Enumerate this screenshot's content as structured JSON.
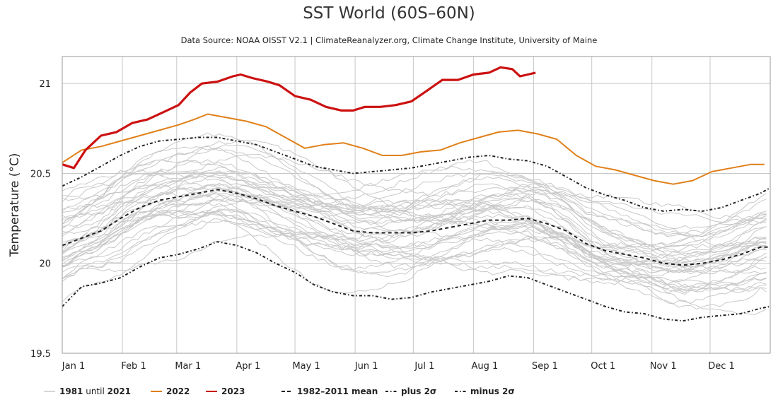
{
  "chart_data": {
    "type": "line",
    "title": "SST World (60S–60N)",
    "subtitle": "Data Source: NOAA OISST V2.1 | ClimateReanalyzer.org, Climate Change Institute, University of Maine",
    "ylabel": "Temperature (°C)",
    "xlabel": "",
    "ylim": [
      19.5,
      21.15
    ],
    "xlim": [
      0,
      365
    ],
    "y_ticks": [
      19.5,
      20,
      20.5,
      21
    ],
    "x_ticks": [
      {
        "label": "Jan 1",
        "day": 0
      },
      {
        "label": "Feb 1",
        "day": 31
      },
      {
        "label": "Mar 1",
        "day": 59
      },
      {
        "label": "Apr 1",
        "day": 90
      },
      {
        "label": "May 1",
        "day": 120
      },
      {
        "label": "Jun 1",
        "day": 151
      },
      {
        "label": "Jul 1",
        "day": 181
      },
      {
        "label": "Aug 1",
        "day": 212
      },
      {
        "label": "Sep 1",
        "day": 243
      },
      {
        "label": "Oct 1",
        "day": 273
      },
      {
        "label": "Nov 1",
        "day": 304
      },
      {
        "label": "Dec 1",
        "day": 334
      }
    ],
    "grid": true,
    "legend_position": "bottom",
    "legend": [
      {
        "label_main": "1981",
        "label_mid": " until ",
        "label_end": "2021",
        "series": "history"
      },
      {
        "label_main": "2022",
        "series": "2022"
      },
      {
        "label_main": "2023",
        "series": "2023"
      },
      {
        "label_main": "1982–2011 mean",
        "series": "mean"
      },
      {
        "label_main": "plus 2σ",
        "series": "plus"
      },
      {
        "label_main": "minus 2σ",
        "series": "minus"
      }
    ],
    "series": [
      {
        "name": "2023",
        "color": "#cc1111",
        "style": "solid",
        "x": [
          0,
          6,
          12,
          20,
          28,
          36,
          44,
          52,
          60,
          66,
          72,
          80,
          88,
          92,
          98,
          106,
          112,
          120,
          128,
          136,
          144,
          150,
          156,
          164,
          172,
          180,
          188,
          196,
          204,
          212,
          220,
          226,
          232,
          236,
          240,
          244
        ],
        "y": [
          20.55,
          20.53,
          20.63,
          20.71,
          20.73,
          20.78,
          20.8,
          20.84,
          20.88,
          20.95,
          21.0,
          21.01,
          21.04,
          21.05,
          21.03,
          21.01,
          20.99,
          20.93,
          20.91,
          20.87,
          20.85,
          20.85,
          20.87,
          20.87,
          20.88,
          20.9,
          20.96,
          21.02,
          21.02,
          21.05,
          21.06,
          21.09,
          21.08,
          21.04,
          21.05,
          21.06
        ]
      },
      {
        "name": "2022",
        "color": "#e0801a",
        "style": "solid",
        "x": [
          0,
          10,
          20,
          30,
          40,
          50,
          60,
          68,
          75,
          85,
          95,
          105,
          115,
          125,
          135,
          145,
          155,
          165,
          175,
          185,
          195,
          205,
          215,
          225,
          235,
          245,
          255,
          265,
          275,
          285,
          295,
          305,
          315,
          325,
          335,
          345,
          355,
          362
        ],
        "y": [
          20.56,
          20.63,
          20.65,
          20.68,
          20.71,
          20.74,
          20.77,
          20.8,
          20.83,
          20.81,
          20.79,
          20.76,
          20.7,
          20.64,
          20.66,
          20.67,
          20.64,
          20.6,
          20.6,
          20.62,
          20.63,
          20.67,
          20.7,
          20.73,
          20.74,
          20.72,
          20.69,
          20.6,
          20.54,
          20.52,
          20.49,
          20.46,
          20.44,
          20.46,
          20.51,
          20.53,
          20.55,
          20.55
        ]
      },
      {
        "name": "1982–2011 mean",
        "color": "#222222",
        "style": "dashed",
        "x": [
          0,
          10,
          20,
          30,
          40,
          50,
          60,
          70,
          80,
          90,
          100,
          110,
          120,
          130,
          140,
          150,
          160,
          170,
          180,
          190,
          200,
          210,
          220,
          230,
          240,
          250,
          260,
          270,
          280,
          290,
          300,
          310,
          320,
          330,
          340,
          350,
          360,
          365
        ],
        "y": [
          20.1,
          20.14,
          20.18,
          20.25,
          20.31,
          20.35,
          20.37,
          20.39,
          20.41,
          20.39,
          20.36,
          20.32,
          20.29,
          20.26,
          20.22,
          20.18,
          20.17,
          20.17,
          20.17,
          20.18,
          20.2,
          20.22,
          20.24,
          20.24,
          20.25,
          20.22,
          20.18,
          20.11,
          20.07,
          20.05,
          20.03,
          20.0,
          19.99,
          20.0,
          20.02,
          20.05,
          20.09,
          20.09
        ]
      },
      {
        "name": "plus 2σ",
        "color": "#222222",
        "style": "dashdot",
        "x": [
          0,
          10,
          20,
          30,
          40,
          50,
          60,
          70,
          80,
          90,
          100,
          110,
          120,
          130,
          140,
          150,
          160,
          170,
          180,
          190,
          200,
          210,
          220,
          230,
          240,
          250,
          260,
          270,
          280,
          290,
          300,
          310,
          320,
          330,
          340,
          350,
          360,
          365
        ],
        "y": [
          20.43,
          20.48,
          20.54,
          20.6,
          20.65,
          20.68,
          20.69,
          20.7,
          20.7,
          20.68,
          20.66,
          20.62,
          20.58,
          20.54,
          20.52,
          20.5,
          20.51,
          20.52,
          20.53,
          20.55,
          20.57,
          20.59,
          20.6,
          20.58,
          20.57,
          20.54,
          20.48,
          20.42,
          20.38,
          20.35,
          20.31,
          20.29,
          20.3,
          20.29,
          20.31,
          20.35,
          20.39,
          20.42
        ]
      },
      {
        "name": "minus 2σ",
        "color": "#222222",
        "style": "dashdot",
        "x": [
          0,
          10,
          20,
          30,
          40,
          50,
          60,
          70,
          80,
          90,
          100,
          110,
          120,
          130,
          140,
          150,
          160,
          170,
          180,
          190,
          200,
          210,
          220,
          230,
          240,
          250,
          260,
          270,
          280,
          290,
          300,
          310,
          320,
          330,
          340,
          350,
          360,
          365
        ],
        "y": [
          19.76,
          19.87,
          19.89,
          19.92,
          19.98,
          20.03,
          20.05,
          20.08,
          20.12,
          20.1,
          20.06,
          20.0,
          19.95,
          19.88,
          19.84,
          19.82,
          19.82,
          19.8,
          19.81,
          19.84,
          19.86,
          19.88,
          19.9,
          19.93,
          19.92,
          19.88,
          19.84,
          19.8,
          19.76,
          19.73,
          19.72,
          19.69,
          19.68,
          19.7,
          19.71,
          19.72,
          19.75,
          19.76
        ]
      }
    ]
  }
}
